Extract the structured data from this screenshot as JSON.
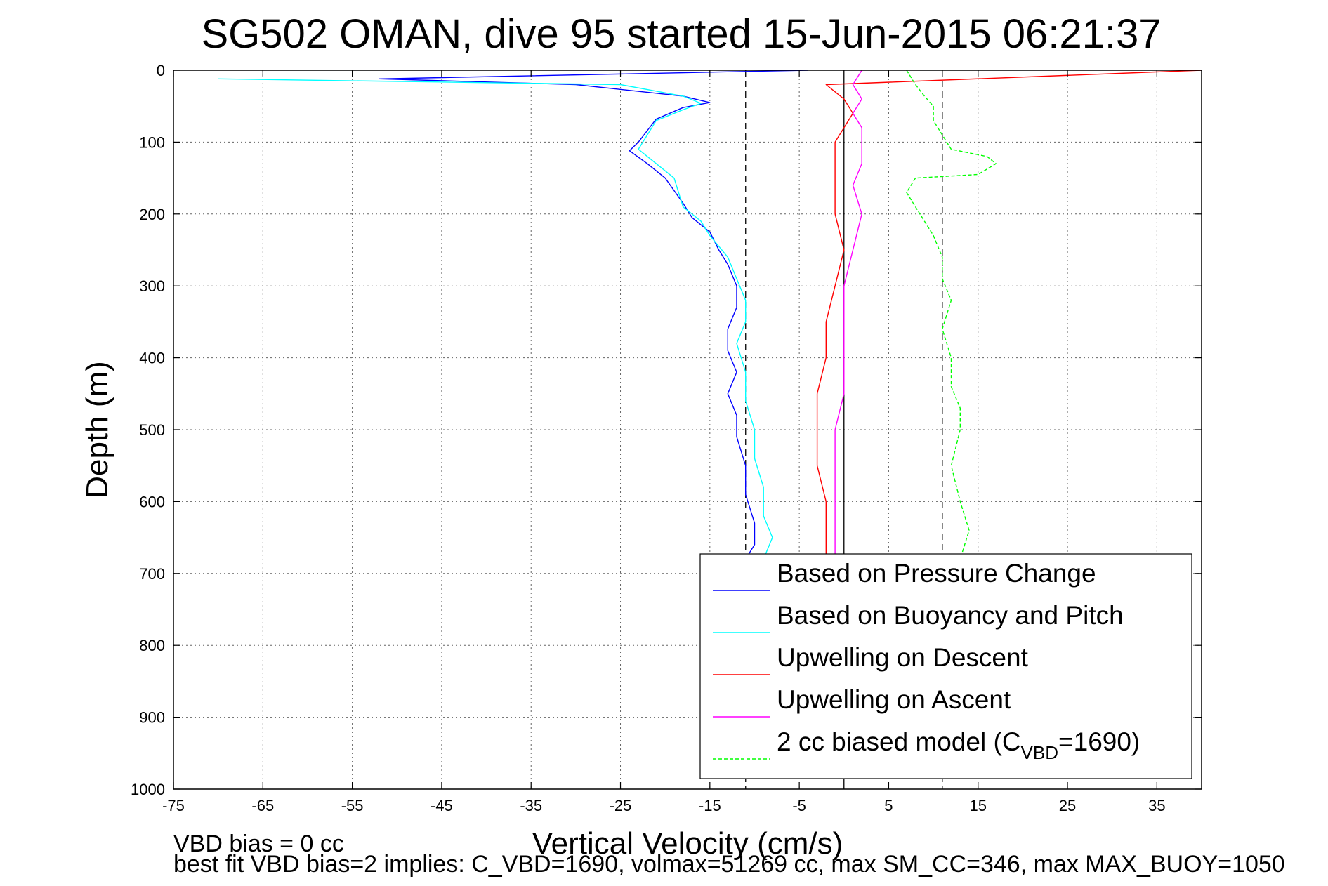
{
  "chart_data": {
    "type": "line",
    "title": "SG502 OMAN, dive 95 started 15-Jun-2015 06:21:37",
    "xlabel": "Vertical Velocity (cm/s)",
    "ylabel": "Depth (m)",
    "xlim": [
      -75,
      40
    ],
    "ylim": [
      0,
      1000
    ],
    "y_reversed": true,
    "grid": true,
    "x_ticks": [
      -75,
      -65,
      -55,
      -45,
      -35,
      -25,
      -15,
      -5,
      5,
      15,
      25,
      35
    ],
    "y_ticks": [
      0,
      100,
      200,
      300,
      400,
      500,
      600,
      700,
      800,
      900,
      1000
    ],
    "legend_position": "bottom-right",
    "series": [
      {
        "name": "Based on Pressure Change",
        "color": "#0000ff",
        "style": "solid",
        "points": [
          [
            -4,
            0
          ],
          [
            -52,
            12
          ],
          [
            -30,
            20
          ],
          [
            -18,
            36
          ],
          [
            -15,
            45
          ],
          [
            -18,
            52
          ],
          [
            -21,
            68
          ],
          [
            -22,
            84
          ],
          [
            -23,
            100
          ],
          [
            -24,
            112
          ],
          [
            -22,
            130
          ],
          [
            -20,
            150
          ],
          [
            -18,
            185
          ],
          [
            -17,
            205
          ],
          [
            -15,
            225
          ],
          [
            -14,
            250
          ],
          [
            -13,
            270
          ],
          [
            -12,
            300
          ],
          [
            -12,
            330
          ],
          [
            -13,
            360
          ],
          [
            -13,
            390
          ],
          [
            -12,
            420
          ],
          [
            -13,
            450
          ],
          [
            -12,
            480
          ],
          [
            -12,
            510
          ],
          [
            -11,
            550
          ],
          [
            -11,
            590
          ],
          [
            -10,
            630
          ],
          [
            -10,
            660
          ],
          [
            -11,
            680
          ]
        ]
      },
      {
        "name": "Based on Buoyancy and Pitch",
        "color": "#00ffff",
        "style": "solid",
        "points": [
          [
            -70,
            12
          ],
          [
            -25,
            20
          ],
          [
            -18,
            36
          ],
          [
            -16,
            46
          ],
          [
            -18,
            55
          ],
          [
            -21,
            70
          ],
          [
            -22,
            90
          ],
          [
            -23,
            110
          ],
          [
            -21,
            130
          ],
          [
            -19,
            150
          ],
          [
            -18,
            190
          ],
          [
            -16,
            210
          ],
          [
            -15,
            230
          ],
          [
            -13,
            260
          ],
          [
            -12,
            290
          ],
          [
            -11,
            320
          ],
          [
            -11,
            350
          ],
          [
            -12,
            380
          ],
          [
            -11,
            420
          ],
          [
            -11,
            460
          ],
          [
            -10,
            500
          ],
          [
            -10,
            540
          ],
          [
            -9,
            580
          ],
          [
            -9,
            620
          ],
          [
            -8,
            650
          ],
          [
            -9,
            680
          ]
        ]
      },
      {
        "name": "Upwelling on Descent",
        "color": "#ff0000",
        "style": "solid",
        "points": [
          [
            40,
            0
          ],
          [
            -2,
            20
          ],
          [
            0,
            40
          ],
          [
            1,
            60
          ],
          [
            0,
            80
          ],
          [
            -1,
            100
          ],
          [
            -1,
            130
          ],
          [
            -1,
            160
          ],
          [
            -1,
            200
          ],
          [
            0,
            250
          ],
          [
            -1,
            300
          ],
          [
            -2,
            350
          ],
          [
            -2,
            400
          ],
          [
            -3,
            450
          ],
          [
            -3,
            500
          ],
          [
            -3,
            550
          ],
          [
            -2,
            600
          ],
          [
            -2,
            650
          ],
          [
            -2,
            680
          ]
        ]
      },
      {
        "name": "Upwelling on Ascent",
        "color": "#ff00ff",
        "style": "solid",
        "points": [
          [
            2,
            0
          ],
          [
            1,
            20
          ],
          [
            2,
            40
          ],
          [
            1,
            60
          ],
          [
            2,
            80
          ],
          [
            2,
            100
          ],
          [
            2,
            130
          ],
          [
            1,
            160
          ],
          [
            2,
            200
          ],
          [
            1,
            250
          ],
          [
            0,
            300
          ],
          [
            0,
            350
          ],
          [
            0,
            400
          ],
          [
            0,
            450
          ],
          [
            -1,
            500
          ],
          [
            -1,
            550
          ],
          [
            -1,
            600
          ],
          [
            -1,
            650
          ],
          [
            -1,
            680
          ]
        ]
      },
      {
        "name": "2 cc biased model (C_VBD=1690)",
        "color": "#00ff00",
        "style": "dashed",
        "points": [
          [
            7,
            0
          ],
          [
            8,
            20
          ],
          [
            9,
            36
          ],
          [
            10,
            50
          ],
          [
            10,
            70
          ],
          [
            11,
            90
          ],
          [
            12,
            110
          ],
          [
            16,
            120
          ],
          [
            17,
            130
          ],
          [
            15,
            145
          ],
          [
            8,
            150
          ],
          [
            7,
            170
          ],
          [
            8,
            190
          ],
          [
            9,
            210
          ],
          [
            10,
            230
          ],
          [
            11,
            260
          ],
          [
            11,
            290
          ],
          [
            12,
            320
          ],
          [
            11,
            360
          ],
          [
            12,
            400
          ],
          [
            12,
            440
          ],
          [
            13,
            470
          ],
          [
            13,
            500
          ],
          [
            12,
            550
          ],
          [
            13,
            600
          ],
          [
            14,
            640
          ],
          [
            13,
            680
          ]
        ]
      }
    ],
    "reference_lines": [
      {
        "x": -11,
        "style": "dashed",
        "color": "#000000"
      },
      {
        "x": 0,
        "style": "solid",
        "color": "#000000"
      },
      {
        "x": 11,
        "style": "dashed",
        "color": "#000000"
      }
    ]
  },
  "legend": {
    "items": [
      {
        "label": "Based on Pressure Change",
        "color": "#0000ff"
      },
      {
        "label": "Based on Buoyancy and Pitch",
        "color": "#00ffff"
      },
      {
        "label": "Upwelling on Descent",
        "color": "#ff0000"
      },
      {
        "label": "Upwelling on Ascent",
        "color": "#ff00ff"
      },
      {
        "label": "2 cc biased model (C",
        "sub": "VBD",
        "tail": "=1690)",
        "color": "#00ff00"
      }
    ]
  },
  "footer": {
    "line1": "VBD bias = 0 cc",
    "line2": "best fit VBD bias=2 implies: C_VBD=1690, volmax=51269 cc, max SM_CC=346, max MAX_BUOY=1050"
  }
}
